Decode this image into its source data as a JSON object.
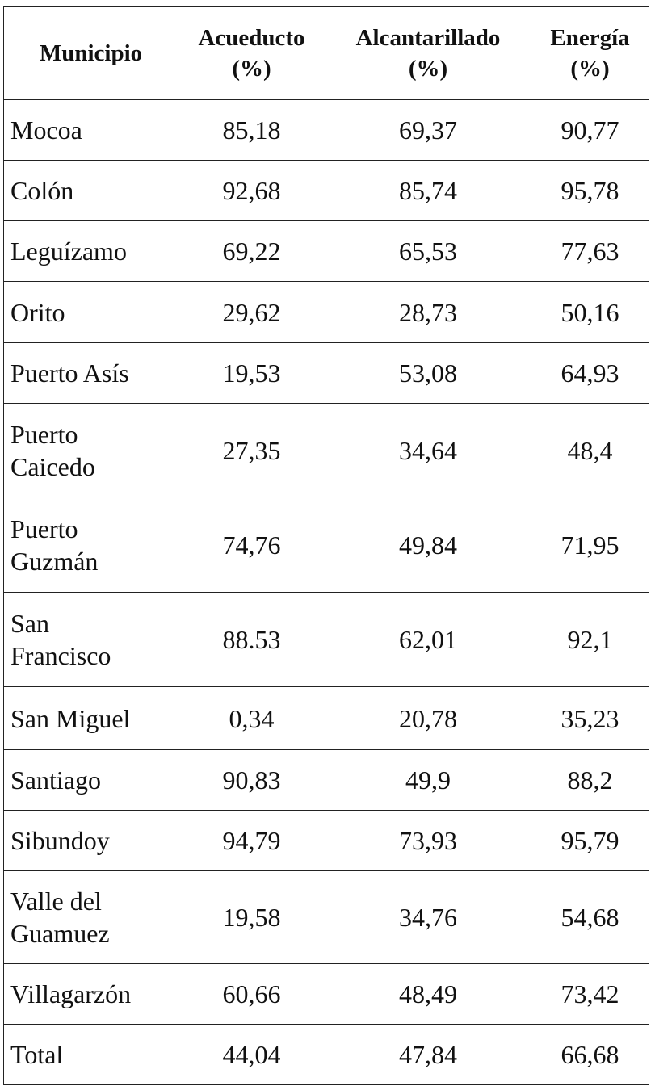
{
  "table": {
    "header": [
      [
        "Municipio"
      ],
      [
        "Acueducto",
        "(%)"
      ],
      [
        "Alcantarillado",
        "(%)"
      ],
      [
        "Energía",
        "(%)"
      ]
    ],
    "rows": [
      [
        [
          "Mocoa"
        ],
        "85,18",
        "69,37",
        "90,77"
      ],
      [
        [
          "Colón"
        ],
        "92,68",
        "85,74",
        "95,78"
      ],
      [
        [
          "Leguízamo"
        ],
        "69,22",
        "65,53",
        "77,63"
      ],
      [
        [
          "Orito"
        ],
        "29,62",
        "28,73",
        "50,16"
      ],
      [
        [
          "Puerto Asís"
        ],
        "19,53",
        "53,08",
        "64,93"
      ],
      [
        [
          "Puerto",
          "Caicedo"
        ],
        "27,35",
        "34,64",
        "48,4"
      ],
      [
        [
          "Puerto",
          "Guzmán"
        ],
        "74,76",
        "49,84",
        "71,95"
      ],
      [
        [
          "San",
          "Francisco"
        ],
        "88.53",
        "62,01",
        "92,1"
      ],
      [
        [
          "San Miguel"
        ],
        "0,34",
        "20,78",
        "35,23"
      ],
      [
        [
          "Santiago"
        ],
        "90,83",
        "49,9",
        "88,2"
      ],
      [
        [
          "Sibundoy"
        ],
        "94,79",
        "73,93",
        "95,79"
      ],
      [
        [
          "Valle del",
          "Guamuez"
        ],
        "19,58",
        "34,76",
        "54,68"
      ],
      [
        [
          "Villagarzón"
        ],
        "60,66",
        "48,49",
        "73,42"
      ],
      [
        [
          "Total"
        ],
        "44,04",
        "47,84",
        "66,68"
      ]
    ]
  }
}
